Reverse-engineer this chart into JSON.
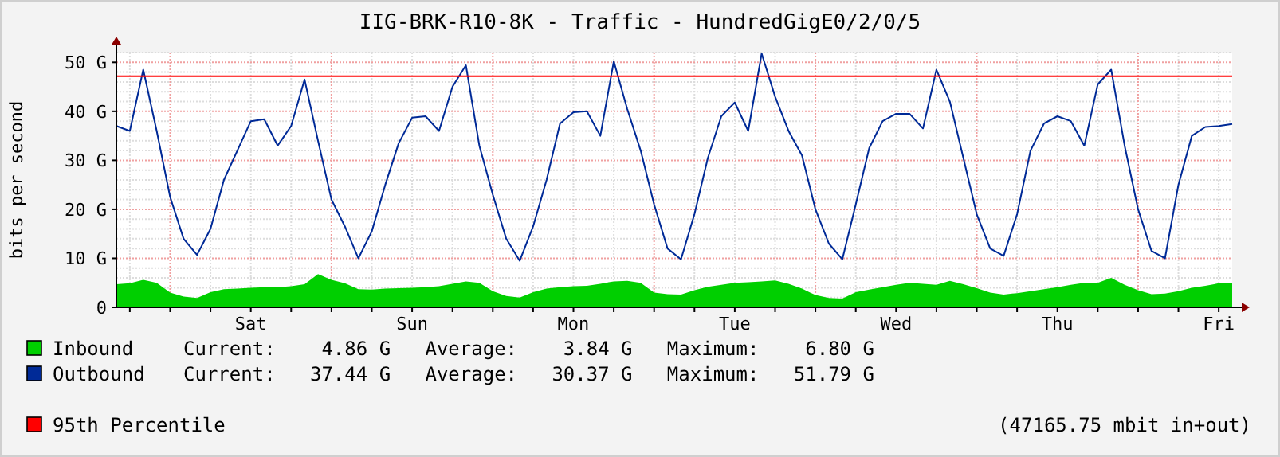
{
  "chart_data": {
    "type": "line",
    "title": "IIG-BRK-R10-8K - Traffic - HundredGigE0/2/0/5",
    "ylabel": "bits per second",
    "categories": [
      null,
      null,
      null,
      null,
      null,
      null,
      null,
      null,
      null,
      null,
      "Sat",
      null,
      null,
      null,
      null,
      null,
      null,
      null,
      null,
      null,
      null,
      null,
      "Sun",
      null,
      null,
      null,
      null,
      null,
      null,
      null,
      null,
      null,
      null,
      null,
      "Mon",
      null,
      null,
      null,
      null,
      null,
      null,
      null,
      null,
      null,
      null,
      null,
      "Tue",
      null,
      null,
      null,
      null,
      null,
      null,
      null,
      null,
      null,
      null,
      null,
      "Wed",
      null,
      null,
      null,
      null,
      null,
      null,
      null,
      null,
      null,
      null,
      null,
      "Thu",
      null,
      null,
      null,
      null,
      null,
      null,
      null,
      null,
      null,
      null,
      null,
      "Fri",
      null
    ],
    "ylim": [
      0,
      52
    ],
    "yticks": [
      0,
      {
        "value": 10,
        "label": "10 G"
      },
      {
        "value": 20,
        "label": "20 G"
      },
      {
        "value": 30,
        "label": "30 G"
      },
      {
        "value": 40,
        "label": "40 G"
      },
      {
        "value": 50,
        "label": "50 G"
      }
    ],
    "grid": true,
    "legend": "bottom",
    "series": [
      {
        "name": "Inbound",
        "type": "area",
        "color": "#00cf00",
        "values": [
          4.7,
          4.9,
          5.6,
          5,
          3,
          2.2,
          1.9,
          3.1,
          3.7,
          3.8,
          4,
          4.1,
          4.1,
          4.3,
          4.7,
          6.8,
          5.6,
          4.9,
          3.7,
          3.6,
          3.8,
          3.9,
          4,
          4.1,
          4.3,
          4.8,
          5.3,
          5,
          3.3,
          2.3,
          2,
          3.1,
          3.8,
          4.1,
          4.3,
          4.4,
          4.8,
          5.3,
          5.4,
          5,
          3,
          2.7,
          2.6,
          3.5,
          4.2,
          4.6,
          5,
          5.1,
          5.3,
          5.5,
          4.8,
          3.8,
          2.5,
          1.9,
          1.8,
          3.1,
          3.6,
          4.1,
          4.6,
          5,
          4.8,
          4.6,
          5.4,
          4.7,
          3.9,
          3,
          2.6,
          2.9,
          3.3,
          3.7,
          4.1,
          4.6,
          5,
          5,
          6,
          4.6,
          3.5,
          2.7,
          2.8,
          3.3,
          4,
          4.4,
          4.9,
          4.9
        ]
      },
      {
        "name": "Outbound",
        "color": "#002a97",
        "values": [
          37,
          36,
          48.5,
          36,
          22.5,
          14,
          10.7,
          16,
          26,
          32,
          38,
          38.4,
          33,
          37,
          46.5,
          34,
          22,
          16.5,
          10,
          15.5,
          25,
          33.5,
          38.7,
          39,
          36,
          45,
          49.4,
          33,
          23,
          14,
          9.5,
          16.5,
          26,
          37.5,
          39.8,
          40,
          35,
          50.2,
          40.5,
          32,
          21,
          12,
          9.8,
          19,
          30.5,
          39,
          41.8,
          36,
          51.8,
          43,
          36,
          31,
          20,
          13,
          9.8,
          21,
          32.5,
          38,
          39.5,
          39.5,
          36.5,
          48.5,
          42,
          30.5,
          19,
          12,
          10.5,
          19,
          32,
          37.5,
          39,
          38,
          33,
          45.5,
          48.5,
          33,
          20,
          11.5,
          10,
          25,
          35,
          36.8,
          37,
          37.4
        ]
      }
    ],
    "ref_lines": [
      {
        "axis": "y",
        "value": 47.16575,
        "label": "95th Percentile",
        "color": "#ff0000"
      }
    ],
    "annotations": [
      "Current:    4.86 G   Average:    3.84 G   Maximum:    6.80 G",
      "Current:   37.44 G   Average:   30.37 G   Maximum:   51.79 G",
      "(47165.75 mbit in+out)"
    ]
  }
}
